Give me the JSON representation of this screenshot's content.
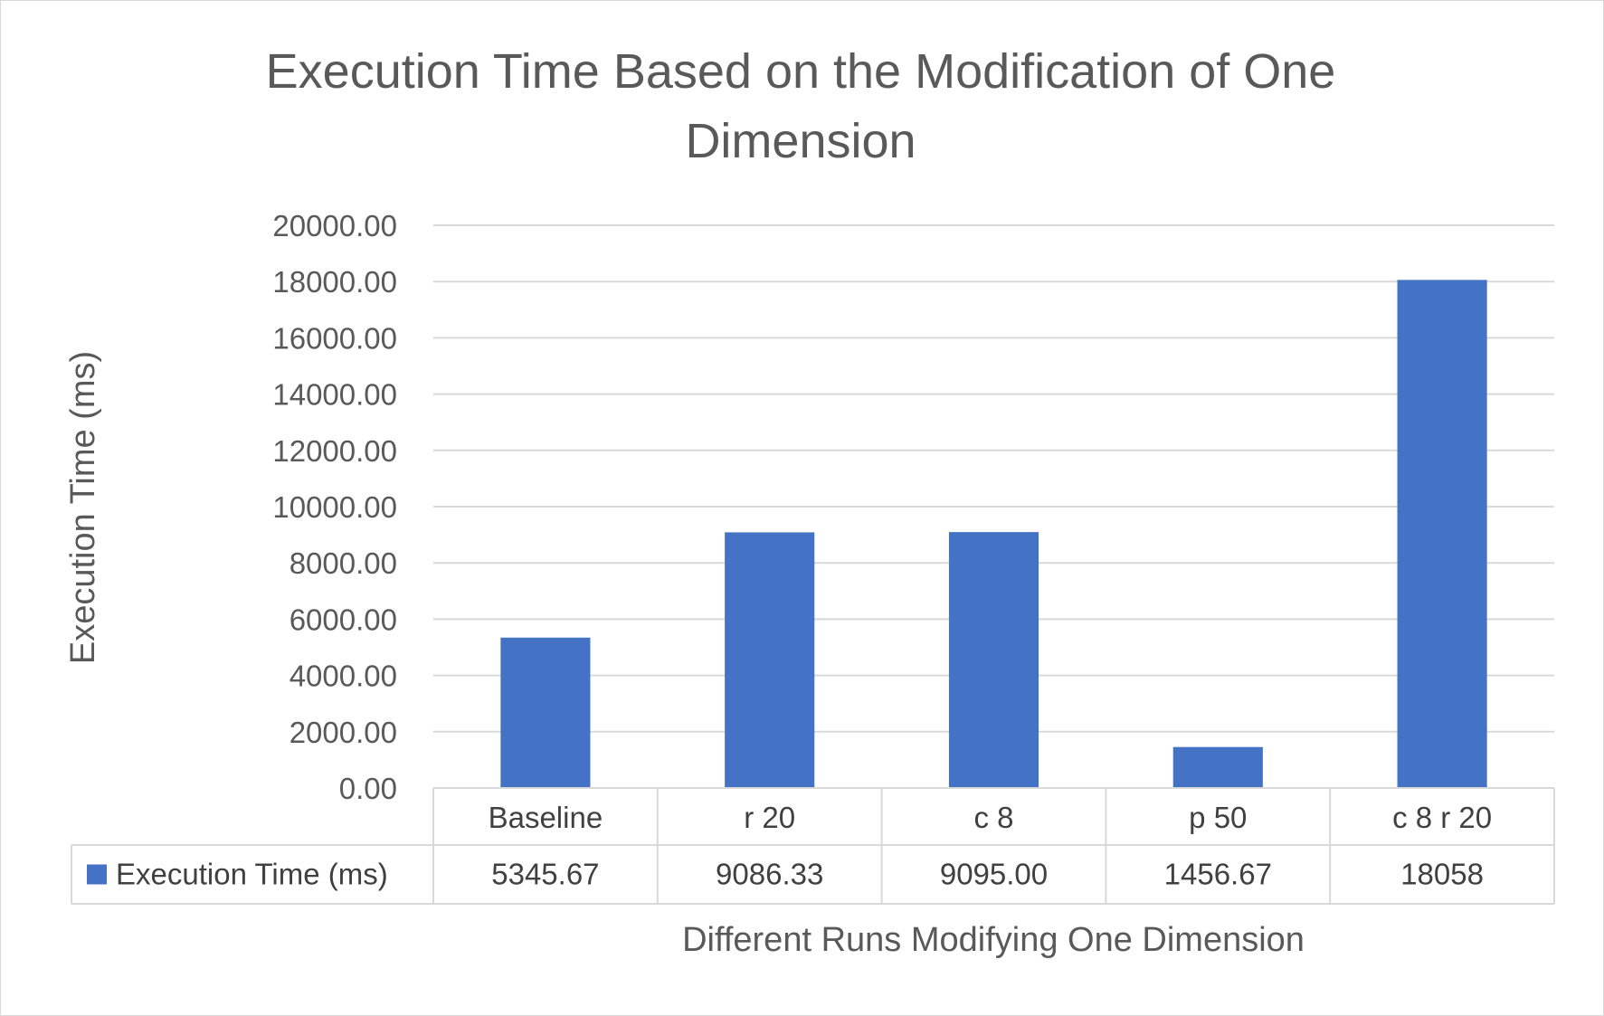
{
  "chart_data": {
    "type": "bar",
    "title_lines": [
      "Execution Time Based on the Modification of One",
      "Dimension"
    ],
    "xlabel": "Different Runs Modifying One Dimension",
    "ylabel": "Execution Time (ms)",
    "categories": [
      "Baseline",
      "r 20",
      "c 8",
      "p 50",
      "c 8 r 20"
    ],
    "series": [
      {
        "name": "Execution Time (ms)",
        "values": [
          5345.67,
          9086.33,
          9095.0,
          1456.67,
          18058
        ],
        "table_labels": [
          "5345.67",
          "9086.33",
          "9095.00",
          "1456.67",
          "18058"
        ],
        "color": "#4472c4"
      }
    ],
    "ylim": [
      0,
      20000
    ],
    "yticks": [
      "0.00",
      "2000.00",
      "4000.00",
      "6000.00",
      "8000.00",
      "10000.00",
      "12000.00",
      "14000.00",
      "16000.00",
      "18000.00",
      "20000.00"
    ],
    "grid": true,
    "legend_placement": "data-table"
  },
  "colors": {
    "bar": "#4472c4",
    "grid": "#d9d9d9",
    "text": "#595959",
    "table_text": "#404040"
  }
}
